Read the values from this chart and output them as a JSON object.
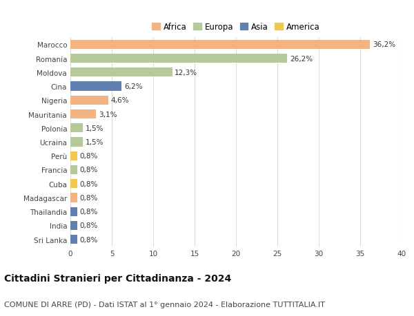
{
  "categories": [
    "Marocco",
    "Romania",
    "Moldova",
    "Cina",
    "Nigeria",
    "Mauritania",
    "Polonia",
    "Ucraina",
    "Perù",
    "Francia",
    "Cuba",
    "Madagascar",
    "Thailandia",
    "India",
    "Sri Lanka"
  ],
  "values": [
    36.2,
    26.2,
    12.3,
    6.2,
    4.6,
    3.1,
    1.5,
    1.5,
    0.8,
    0.8,
    0.8,
    0.8,
    0.8,
    0.8,
    0.8
  ],
  "continents": [
    "Africa",
    "Europa",
    "Europa",
    "Asia",
    "Africa",
    "Africa",
    "Europa",
    "Europa",
    "America",
    "Europa",
    "America",
    "Africa",
    "Asia",
    "Asia",
    "Asia"
  ],
  "colors": {
    "Africa": "#F4B482",
    "Europa": "#B5C99A",
    "Asia": "#6080B0",
    "America": "#F0C850"
  },
  "xlim": [
    0,
    40
  ],
  "xticks": [
    0,
    5,
    10,
    15,
    20,
    25,
    30,
    35,
    40
  ],
  "title": "Cittadini Stranieri per Cittadinanza - 2024",
  "subtitle": "COMUNE DI ARRE (PD) - Dati ISTAT al 1° gennaio 2024 - Elaborazione TUTTITALIA.IT",
  "title_fontsize": 10,
  "subtitle_fontsize": 8,
  "label_fontsize": 7.5,
  "value_fontsize": 7.5,
  "background_color": "#ffffff",
  "grid_color": "#dddddd",
  "bar_height": 0.65,
  "legend_order": [
    "Africa",
    "Europa",
    "Asia",
    "America"
  ]
}
